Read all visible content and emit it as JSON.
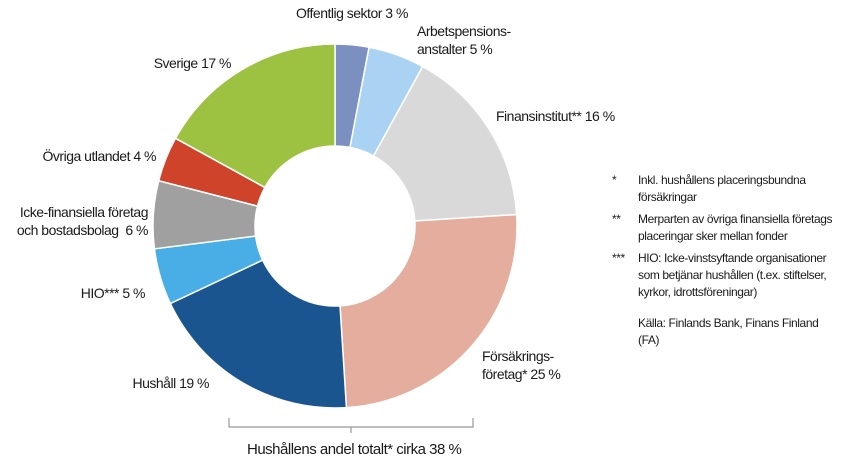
{
  "chart_data": {
    "type": "pie",
    "donut": true,
    "slices": [
      {
        "label": "Offentlig sektor 3 %",
        "value": 3,
        "color": "#7b8fc1"
      },
      {
        "label": "Arbetspensions-\nanstalter 5 %",
        "value": 5,
        "color": "#a9d2f3"
      },
      {
        "label": "Finansinstitut** 16 %",
        "value": 16,
        "color": "#d9d9d9"
      },
      {
        "label": "Försäkrings-\nföretag* 25 %",
        "value": 25,
        "color": "#e5ad9e"
      },
      {
        "label": "Hushåll 19 %",
        "value": 19,
        "color": "#1a5590"
      },
      {
        "label": "HIO*** 5 %",
        "value": 5,
        "color": "#4aaee6"
      },
      {
        "label": "Icke-finansiella företag\noch bostadsbolag  6 %",
        "value": 6,
        "color": "#a0a0a0"
      },
      {
        "label": "Övriga utlandet 4 %",
        "value": 4,
        "color": "#d0432b"
      },
      {
        "label": "Sverige 17 %",
        "value": 17,
        "color": "#9dc140"
      }
    ],
    "bracket_annotation": "Hushållens andel totalt* cirka 38 %"
  },
  "notes": [
    {
      "marker": "*",
      "text": "Inkl. hushållens placeringsbundna försäkringar"
    },
    {
      "marker": "**",
      "text": "Merparten av övriga finansiella företags placeringar sker mellan fonder"
    },
    {
      "marker": "***",
      "text": "HIO: Icke-vinstsyftande organisationer som betjänar hushållen (t.ex. stiftelser, kyrkor, idrottsföreningar)"
    }
  ],
  "source": "Källa: Finlands Bank, Finans Finland (FA)"
}
